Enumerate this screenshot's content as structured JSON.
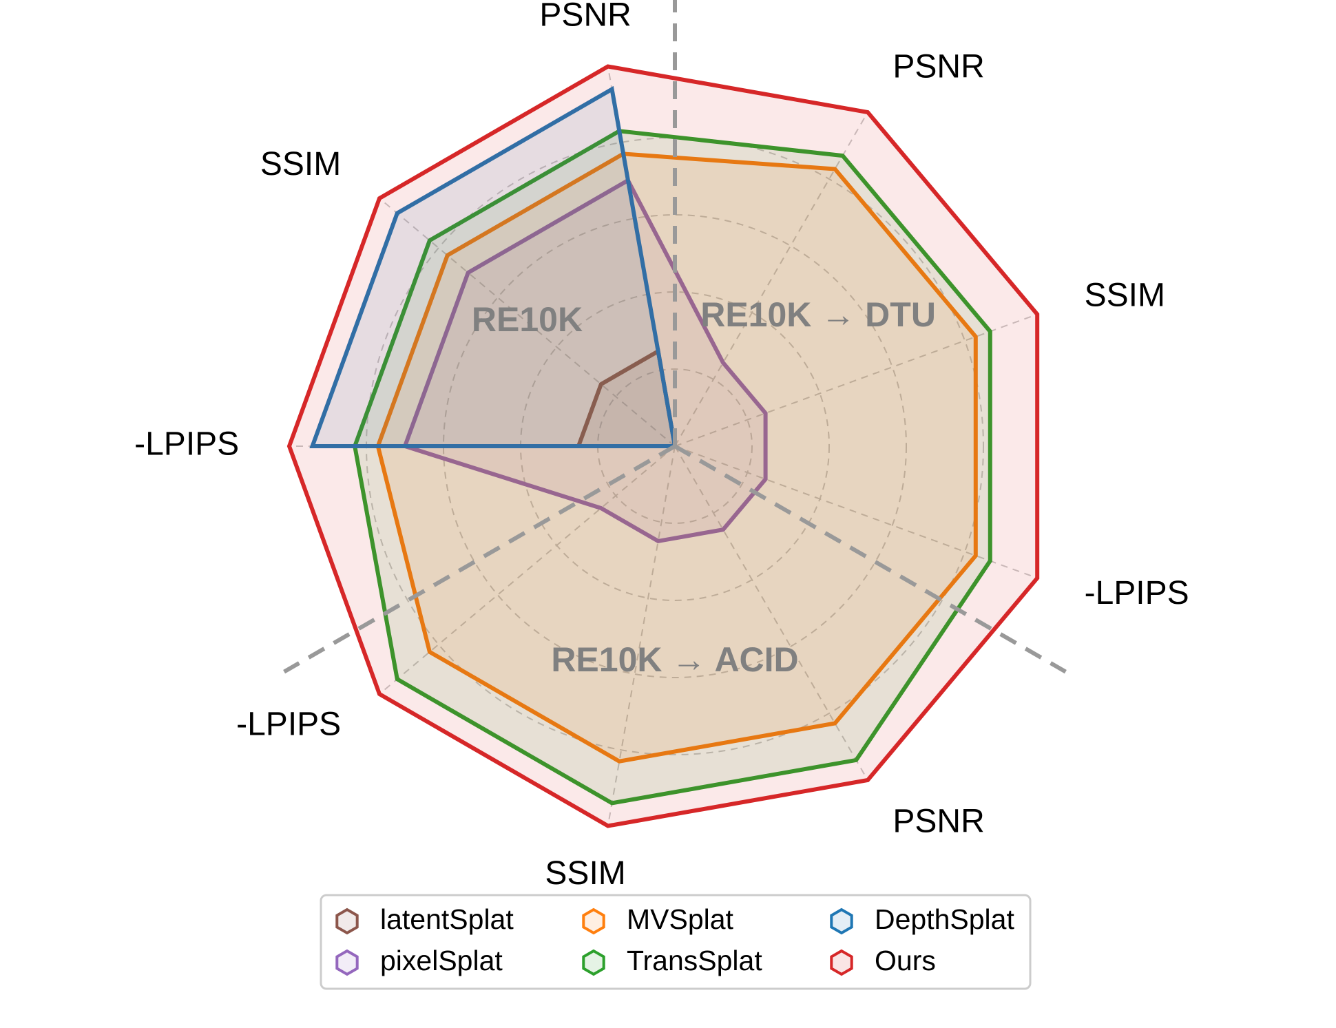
{
  "chart_data": {
    "type": "radar",
    "axes": [
      "PSNR",
      "SSIM",
      "-LPIPS",
      "-LPIPS",
      "SSIM",
      "PSNR",
      "-LPIPS",
      "SSIM",
      "PSNR"
    ],
    "groups": [
      {
        "label": "RE10K",
        "axes": [
          "PSNR",
          "SSIM",
          "-LPIPS"
        ]
      },
      {
        "label": "RE10K → DTU",
        "axes": [
          "PSNR",
          "SSIM",
          "-LPIPS"
        ]
      },
      {
        "label": "RE10K → ACID",
        "axes": [
          "-LPIPS",
          "SSIM",
          "PSNR"
        ]
      }
    ],
    "radial_grid": [
      0.2,
      0.4,
      0.6,
      0.8
    ],
    "legend_position": "bottom-center",
    "series": [
      {
        "name": "latentSplat",
        "color": "#8c564b",
        "values": [
          0.25,
          0.25,
          0.25,
          0.0,
          0.0,
          0.0,
          0.0,
          0.0,
          0.0
        ]
      },
      {
        "name": "pixelSplat",
        "color": "#9467bd",
        "values": [
          0.7,
          0.7,
          0.7,
          0.25,
          0.25,
          0.25,
          0.25,
          0.25,
          0.25
        ]
      },
      {
        "name": "MVSplat",
        "color": "#ff7f0e",
        "values": [
          0.77,
          0.77,
          0.77,
          0.83,
          0.83,
          0.83,
          0.83,
          0.83,
          0.83
        ]
      },
      {
        "name": "TransSplat",
        "color": "#2ca02c",
        "values": [
          0.83,
          0.83,
          0.83,
          0.94,
          0.94,
          0.94,
          0.87,
          0.87,
          0.87
        ]
      },
      {
        "name": "DepthSplat",
        "color": "#1f77b4",
        "values": [
          0.94,
          0.94,
          0.94,
          0.0,
          0.0,
          0.0,
          0.0,
          0.0,
          0.0
        ]
      },
      {
        "name": "Ours",
        "color": "#d62728",
        "values": [
          1.0,
          1.0,
          1.0,
          1.0,
          1.0,
          1.0,
          1.0,
          1.0,
          1.0
        ]
      }
    ]
  }
}
